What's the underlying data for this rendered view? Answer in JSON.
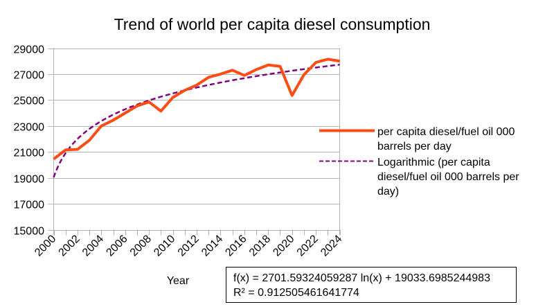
{
  "chart_data": {
    "type": "line",
    "title": "Trend of world per capita diesel consumption",
    "xlabel": "Year",
    "ylabel": "",
    "ylim": [
      15000,
      29000
    ],
    "yticks": [
      15000,
      17000,
      19000,
      21000,
      23000,
      25000,
      27000,
      29000
    ],
    "ytick_labels": [
      "15000",
      "17000",
      "19000",
      "21000",
      "23000",
      "25000",
      "27000",
      "29000"
    ],
    "x": [
      2000,
      2001,
      2002,
      2003,
      2004,
      2005,
      2006,
      2007,
      2008,
      2009,
      2010,
      2011,
      2012,
      2013,
      2014,
      2015,
      2016,
      2017,
      2018,
      2019,
      2020,
      2021,
      2022,
      2023,
      2024
    ],
    "xlim": [
      2000,
      2024
    ],
    "xtick_labels": [
      "2000",
      "2002",
      "2004",
      "2006",
      "2008",
      "2010",
      "2012",
      "2014",
      "2016",
      "2018",
      "2020",
      "2022",
      "2024"
    ],
    "grid": "horizontal",
    "series": [
      {
        "name": "per capita diesel/fuel oil 000 barrels per day",
        "color": "#ff4b14",
        "style": "solid",
        "values": [
          20450,
          21150,
          21200,
          21900,
          23000,
          23450,
          24000,
          24550,
          24850,
          24150,
          25200,
          25750,
          26150,
          26750,
          27000,
          27300,
          26900,
          27350,
          27700,
          27600,
          25350,
          26950,
          27900,
          28150,
          28000
        ]
      }
    ],
    "trendline": {
      "name": "Logarithmic (per capita diesel/fuel oil 000 barrels per day)",
      "color": "#800080",
      "style": "dashed",
      "type": "logarithmic",
      "a": 2701.59324059287,
      "b": 19033.6985244983,
      "equation_text": "f(x) = 2701.59324059287 ln(x) + 19033.6985244983",
      "r2_text": "R² = 0.912505461641774"
    },
    "legend": {
      "position": "right",
      "entries": [
        {
          "lines": [
            "per capita diesel/fuel oil 000",
            "barrels per day"
          ]
        },
        {
          "lines": [
            "Logarithmic (per capita",
            "diesel/fuel oil 000 barrels per",
            "day)"
          ]
        }
      ]
    }
  }
}
